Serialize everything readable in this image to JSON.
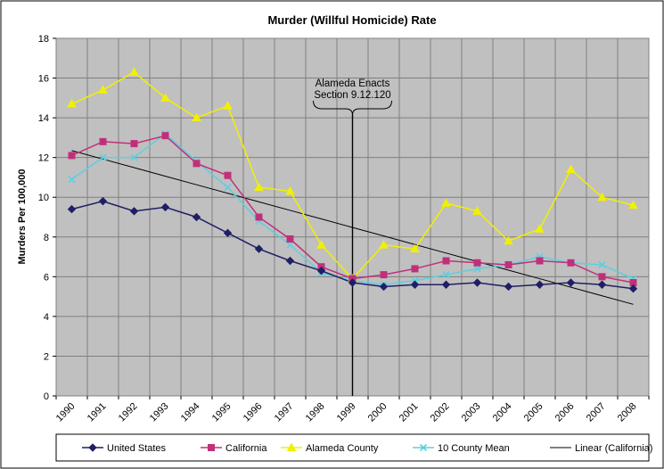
{
  "chart_data": {
    "type": "line",
    "title": "Murder (Willful Homicide) Rate",
    "ylabel": "Murders Per 100,000",
    "xlabel": "",
    "ylim": [
      0,
      18
    ],
    "yticks": [
      0,
      2,
      4,
      6,
      8,
      10,
      12,
      14,
      16,
      18
    ],
    "grid": true,
    "legend": "bottom",
    "categories": [
      "1990",
      "1991",
      "1992",
      "1993",
      "1994",
      "1995",
      "1996",
      "1997",
      "1998",
      "1999",
      "2000",
      "2001",
      "2002",
      "2003",
      "2004",
      "2005",
      "2006",
      "2007",
      "2008"
    ],
    "series": [
      {
        "name": "United States",
        "color": "#1f1f66",
        "marker": "diamond",
        "values": [
          9.4,
          9.8,
          9.3,
          9.5,
          9.0,
          8.2,
          7.4,
          6.8,
          6.3,
          5.7,
          5.5,
          5.6,
          5.6,
          5.7,
          5.5,
          5.6,
          5.7,
          5.6,
          5.4
        ]
      },
      {
        "name": "California",
        "color": "#c0307a",
        "marker": "square",
        "values": [
          12.1,
          12.8,
          12.7,
          13.1,
          11.7,
          11.1,
          9.0,
          7.9,
          6.5,
          5.9,
          6.1,
          6.4,
          6.8,
          6.7,
          6.6,
          6.8,
          6.7,
          6.0,
          5.7
        ]
      },
      {
        "name": "Alameda County",
        "color": "#f0f000",
        "marker": "triangle",
        "values": [
          14.7,
          15.4,
          16.3,
          15.0,
          14.0,
          14.6,
          10.5,
          10.3,
          7.6,
          5.9,
          7.6,
          7.4,
          9.7,
          9.3,
          7.8,
          8.4,
          11.4,
          10.0,
          9.6
        ]
      },
      {
        "name": "10 County Mean",
        "color": "#5ccfe0",
        "marker": "x",
        "values": [
          10.9,
          12.0,
          12.0,
          13.2,
          11.8,
          10.5,
          8.8,
          7.6,
          6.2,
          5.8,
          5.6,
          5.8,
          6.1,
          6.4,
          6.6,
          7.0,
          6.7,
          6.6,
          5.9
        ]
      },
      {
        "name": "Linear (California)",
        "color": "#000000",
        "marker": "none",
        "trendline": true,
        "values": [
          12.35,
          11.92,
          11.49,
          11.06,
          10.63,
          10.2,
          9.77,
          9.34,
          8.91,
          8.48,
          8.05,
          7.62,
          7.19,
          6.76,
          6.33,
          5.9,
          5.47,
          5.04,
          4.61
        ]
      }
    ],
    "annotation": {
      "lines": [
        "Alameda Enacts",
        "Section 9.12.120"
      ],
      "x": "1999"
    }
  }
}
